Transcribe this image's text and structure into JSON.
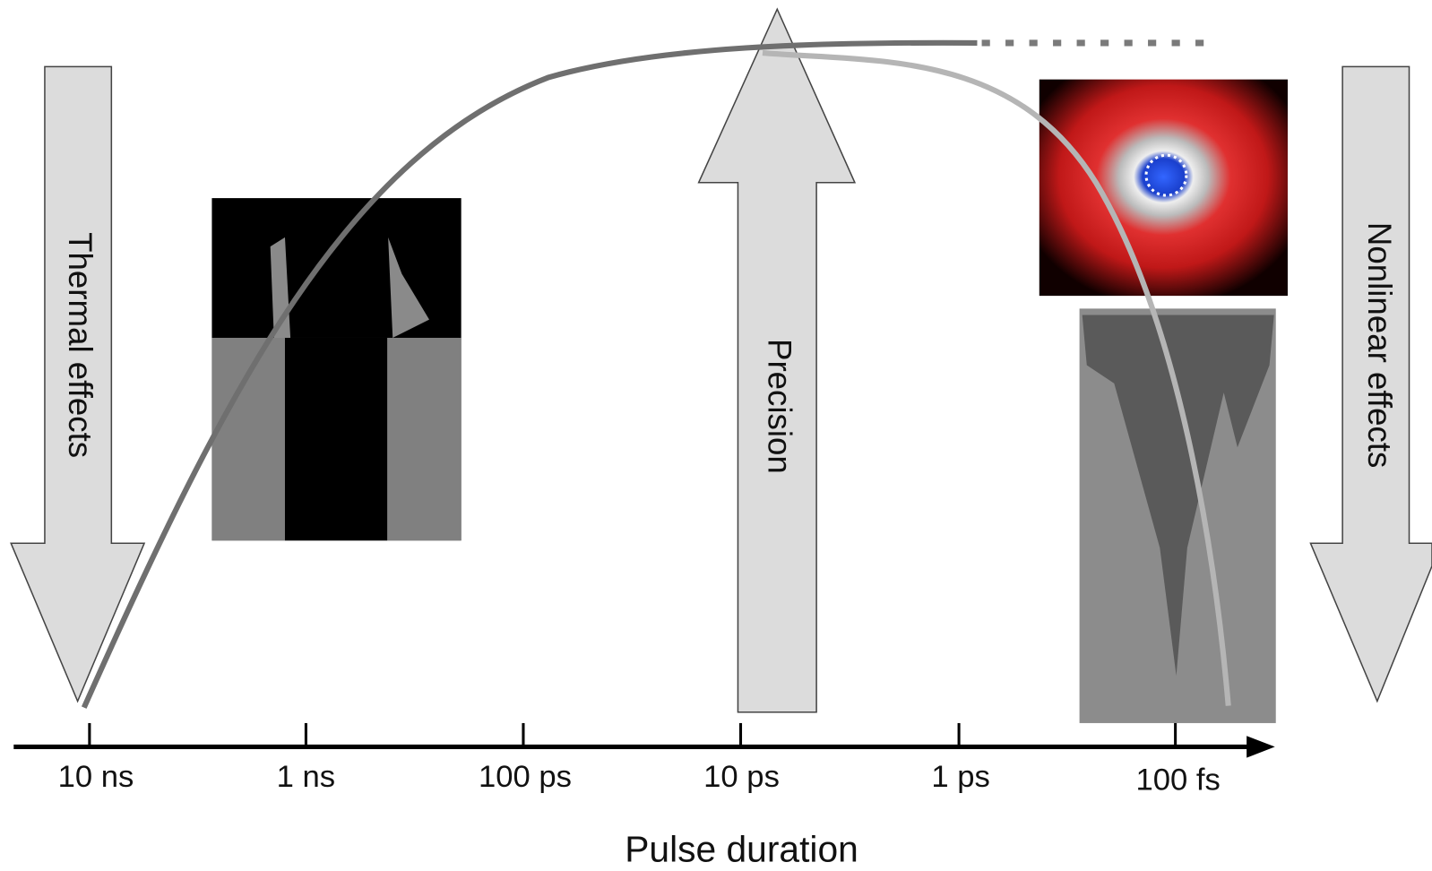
{
  "axis": {
    "label": "Pulse duration",
    "ticks": [
      "10 ns",
      "1 ns",
      "100 ps",
      "10 ps",
      "1 ps",
      "100 fs"
    ]
  },
  "arrows": [
    {
      "label": "Thermal effects"
    },
    {
      "label": "Precision"
    },
    {
      "label": "Nonlinear effects"
    }
  ]
}
